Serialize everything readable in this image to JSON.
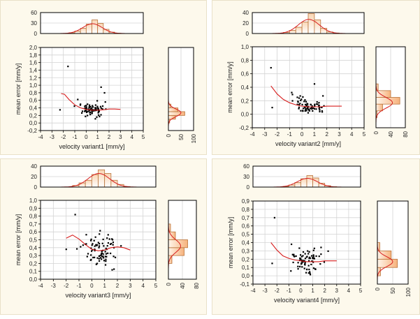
{
  "chart_data": [
    {
      "type": "scatter",
      "xlabel": "velocity variant1 [mm/y]",
      "ylabel": "mean error [mm/y]",
      "xlim": [
        -4,
        5
      ],
      "ylim": [
        -0.2,
        2.0
      ],
      "xticks": [
        "-4",
        "-3",
        "-2",
        "-1",
        "0",
        "1",
        "2",
        "3",
        "4",
        "5"
      ],
      "yticks": [
        "-0,2",
        "0,0",
        "0,2",
        "0,4",
        "0,6",
        "0,8",
        "1,0",
        "1,2",
        "1,4",
        "1,6",
        "1,8",
        "2,0"
      ],
      "fit_line": {
        "x": [
          -2.2,
          -1.9,
          -1.5,
          -1.0,
          -0.5,
          0.0,
          0.5,
          1.0,
          1.5,
          2.0,
          2.5,
          3.0
        ],
        "y": [
          0.78,
          0.76,
          0.62,
          0.48,
          0.4,
          0.36,
          0.34,
          0.34,
          0.35,
          0.37,
          0.37,
          0.36
        ]
      },
      "top_hist": {
        "yticks": [
          "0",
          "30",
          "60"
        ],
        "ymax": 60,
        "bins": [
          -1.5,
          -1.0,
          -0.5,
          0.0,
          0.5,
          1.0,
          1.5,
          2.0,
          2.5
        ],
        "counts": [
          2,
          7,
          15,
          27,
          39,
          29,
          12,
          4,
          1
        ],
        "curve_peak": 28
      },
      "right_hist": {
        "xticks": [
          "0",
          "50",
          "100"
        ],
        "xmax": 100,
        "bins": [
          0.0,
          0.1,
          0.2,
          0.3,
          0.4,
          0.5
        ],
        "counts": [
          5,
          28,
          65,
          38,
          10
        ],
        "curve_peak": 50
      }
    },
    {
      "type": "scatter",
      "xlabel": "velocity variant2 [mm/y]",
      "ylabel": "mean error [mm/y]",
      "xlim": [
        -4,
        5
      ],
      "ylim": [
        -0.2,
        1.0
      ],
      "xticks": [
        "-4",
        "-3",
        "-2",
        "-1",
        "0",
        "1",
        "2",
        "3",
        "4",
        "5"
      ],
      "yticks": [
        "-0,2",
        "0,0",
        "0,2",
        "0,4",
        "0,6",
        "0,8",
        "1,0"
      ],
      "fit_line": {
        "x": [
          -2.5,
          -2.0,
          -1.5,
          -1.0,
          -0.5,
          0.0,
          0.5,
          1.0,
          1.5,
          2.0,
          2.5,
          3.2
        ],
        "y": [
          0.42,
          0.3,
          0.22,
          0.17,
          0.14,
          0.12,
          0.11,
          0.11,
          0.11,
          0.12,
          0.12,
          0.12
        ]
      },
      "top_hist": {
        "yticks": [
          "0",
          "20",
          "40"
        ],
        "ymax": 40,
        "bins": [
          -1.5,
          -1.0,
          -0.5,
          0.0,
          0.5,
          1.0,
          1.5,
          2.0,
          2.5
        ],
        "counts": [
          2,
          6,
          12,
          22,
          38,
          26,
          10,
          3,
          1
        ],
        "curve_peak": 27
      },
      "right_hist": {
        "xticks": [
          "0",
          "40",
          "80"
        ],
        "xmax": 80,
        "bins": [
          -0.05,
          0.05,
          0.15,
          0.25,
          0.35
        ],
        "counts": [
          3,
          18,
          65,
          40,
          6
        ],
        "curve_peak": 45
      }
    },
    {
      "type": "scatter",
      "xlabel": "velocity variant3 [mm/y]",
      "ylabel": "mean error [mm/y]",
      "xlim": [
        -4,
        5
      ],
      "ylim": [
        0.0,
        1.0
      ],
      "xticks": [
        "-4",
        "-3",
        "-2",
        "-1",
        "0",
        "1",
        "2",
        "3",
        "4",
        "5"
      ],
      "yticks": [
        "0,0",
        "0,1",
        "0,2",
        "0,3",
        "0,4",
        "0,5",
        "0,6",
        "0,7",
        "0,8",
        "0,9",
        "1,0"
      ],
      "fit_line": {
        "x": [
          -2.0,
          -1.5,
          -1.0,
          -0.5,
          0.0,
          0.5,
          1.0,
          1.5,
          2.0,
          2.5,
          3.0
        ],
        "y": [
          0.52,
          0.56,
          0.51,
          0.44,
          0.38,
          0.36,
          0.37,
          0.4,
          0.41,
          0.4,
          0.37
        ]
      },
      "top_hist": {
        "yticks": [
          "0",
          "20",
          "40"
        ],
        "ymax": 40,
        "bins": [
          -1.5,
          -1.0,
          -0.5,
          0.0,
          0.5,
          1.0,
          1.5,
          2.0,
          2.5
        ],
        "counts": [
          3,
          8,
          13,
          24,
          33,
          26,
          13,
          5,
          1
        ],
        "curve_peak": 26
      },
      "right_hist": {
        "xticks": [
          "0",
          "40",
          "80"
        ],
        "xmax": 80,
        "bins": [
          0.2,
          0.3,
          0.4,
          0.5,
          0.6
        ],
        "counts": [
          10,
          45,
          55,
          20,
          6
        ],
        "curve_peak": 35
      }
    },
    {
      "type": "scatter",
      "xlabel": "velocity variant4 [mm/y]",
      "ylabel": "mean error [mm/y]",
      "xlim": [
        -4,
        5
      ],
      "ylim": [
        -0.1,
        0.9
      ],
      "xticks": [
        "-4",
        "-3",
        "-2",
        "-1",
        "0",
        "1",
        "2",
        "3",
        "4",
        "5"
      ],
      "yticks": [
        "-0,1",
        "0,0",
        "0,1",
        "0,2",
        "0,3",
        "0,4",
        "0,5",
        "0,6",
        "0,7",
        "0,8",
        "0,9"
      ],
      "fit_line": {
        "x": [
          -2.5,
          -2.0,
          -1.5,
          -1.0,
          -0.5,
          0.0,
          0.5,
          1.0,
          1.5,
          2.0,
          2.5,
          3.0
        ],
        "y": [
          0.4,
          0.31,
          0.24,
          0.21,
          0.19,
          0.18,
          0.17,
          0.17,
          0.17,
          0.18,
          0.18,
          0.18
        ]
      },
      "top_hist": {
        "yticks": [
          "0",
          "30",
          "60"
        ],
        "ymax": 60,
        "bins": [
          -1.5,
          -1.0,
          -0.5,
          0.0,
          0.5,
          1.0,
          1.5,
          2.0,
          2.5
        ],
        "counts": [
          2,
          6,
          13,
          24,
          33,
          26,
          11,
          4,
          1
        ],
        "curve_peak": 25
      },
      "right_hist": {
        "xticks": [
          "0",
          "50",
          "100"
        ],
        "xmax": 100,
        "bins": [
          0.0,
          0.1,
          0.2,
          0.3
        ],
        "counts": [
          10,
          65,
          45,
          8
        ],
        "curve_peak": 50
      }
    }
  ]
}
